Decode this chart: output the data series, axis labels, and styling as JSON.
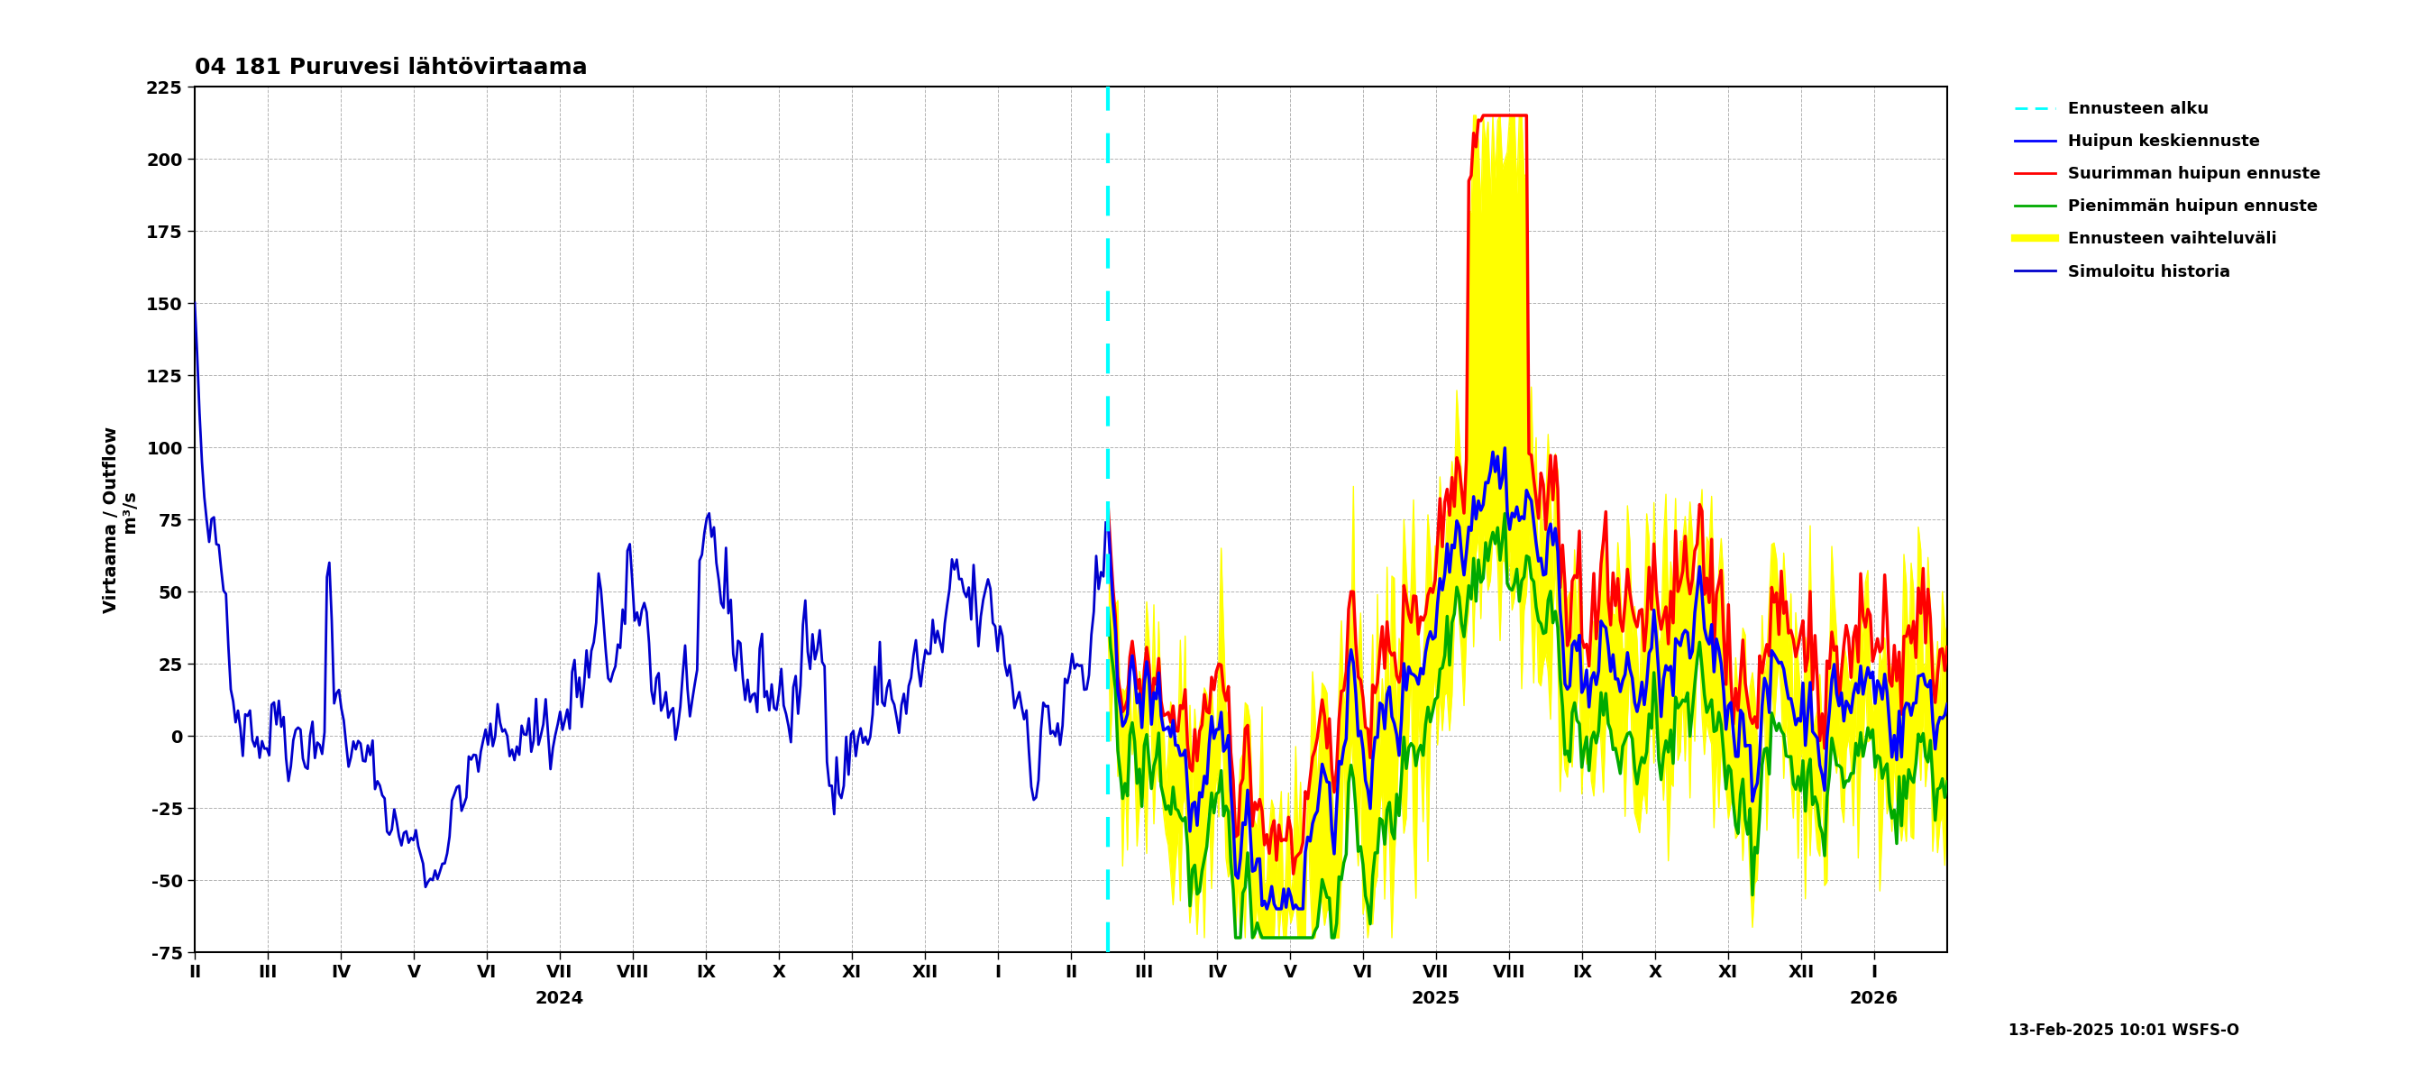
{
  "title": "04 181 Puruvesi lähtövirtaama",
  "ylabel1": "Virtaama / Outflow",
  "ylabel2": "  m³/s",
  "ylim": [
    -75,
    225
  ],
  "yticks": [
    -75,
    -50,
    -25,
    0,
    25,
    50,
    75,
    100,
    125,
    150,
    175,
    200,
    225
  ],
  "date_label": "13-Feb-2025 10:01 WSFS-O",
  "background_color": "#ffffff",
  "grid_color": "#aaaaaa",
  "title_fontsize": 18,
  "tick_fontsize": 14,
  "label_fontsize": 14
}
